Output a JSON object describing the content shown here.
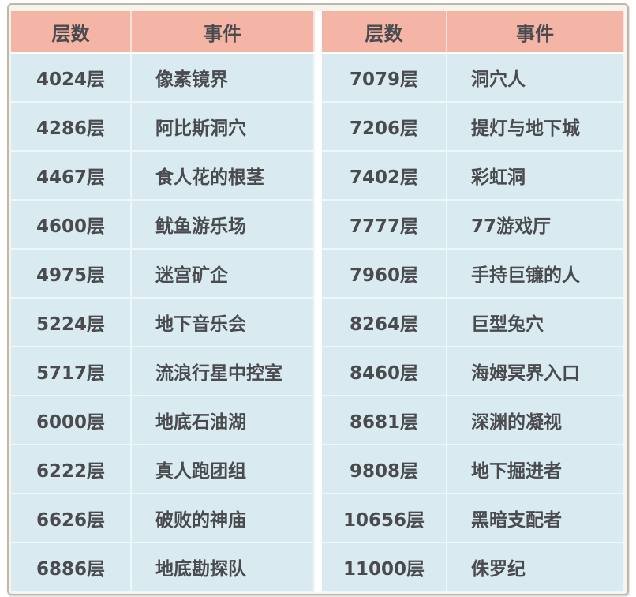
{
  "headers": {
    "floor": "层数",
    "event": "事件"
  },
  "left_rows": [
    {
      "floor": "4024层",
      "event": "像素镜界"
    },
    {
      "floor": "4286层",
      "event": "阿比斯洞穴"
    },
    {
      "floor": "4467层",
      "event": "食人花的根茎"
    },
    {
      "floor": "4600层",
      "event": "鱿鱼游乐场"
    },
    {
      "floor": "4975层",
      "event": "迷宫矿企"
    },
    {
      "floor": "5224层",
      "event": "地下音乐会"
    },
    {
      "floor": "5717层",
      "event": "流浪行星中控室"
    },
    {
      "floor": "6000层",
      "event": "地底石油湖"
    },
    {
      "floor": "6222层",
      "event": "真人跑团组"
    },
    {
      "floor": "6626层",
      "event": "破败的神庙"
    },
    {
      "floor": "6886层",
      "event": "地底勘探队"
    }
  ],
  "right_rows": [
    {
      "floor": "7079层",
      "event": "洞穴人"
    },
    {
      "floor": "7206层",
      "event": "提灯与地下城"
    },
    {
      "floor": "7402层",
      "event": "彩虹洞"
    },
    {
      "floor": "7777层",
      "event": "77游戏厅"
    },
    {
      "floor": "7960层",
      "event": "手持巨镰的人"
    },
    {
      "floor": "8264层",
      "event": "巨型兔穴"
    },
    {
      "floor": "8460层",
      "event": "海姆冥界入口"
    },
    {
      "floor": "8681层",
      "event": "深渊的凝视"
    },
    {
      "floor": "9808层",
      "event": "地下掘进者"
    },
    {
      "floor": "10656层",
      "event": "黑暗支配者"
    },
    {
      "floor": "11000层",
      "event": "侏罗纪"
    }
  ],
  "colors": {
    "header_bg": "#f4b5a6",
    "row_bg": "#d9ebf1",
    "text": "#4a4b4f"
  }
}
